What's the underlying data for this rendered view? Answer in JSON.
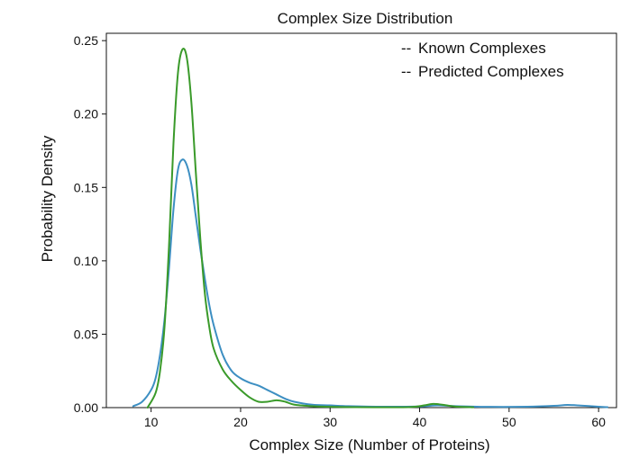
{
  "chart_data": {
    "type": "line",
    "title": "Complex Size Distribution",
    "xlabel": "Complex Size (Number of Proteins)",
    "ylabel": "Probability Density",
    "xlim": [
      5,
      62
    ],
    "ylim": [
      0,
      0.255
    ],
    "xticks": [
      10,
      20,
      30,
      40,
      50,
      60
    ],
    "yticks": [
      0.0,
      0.05,
      0.1,
      0.15,
      0.2,
      0.25
    ],
    "ytick_labels": [
      "0.00",
      "0.05",
      "0.10",
      "0.15",
      "0.20",
      "0.25"
    ],
    "grid": false,
    "legend_position": "top-right",
    "series": [
      {
        "name": "Known Complexes",
        "legend_symbol": "--",
        "color": "#3a9a2a",
        "legend_color": "#2a9d1e",
        "points": [
          [
            9.6,
            0.0
          ],
          [
            10.5,
            0.01
          ],
          [
            11.0,
            0.025
          ],
          [
            11.5,
            0.055
          ],
          [
            12.0,
            0.11
          ],
          [
            12.5,
            0.18
          ],
          [
            13.0,
            0.228
          ],
          [
            13.5,
            0.244
          ],
          [
            14.0,
            0.238
          ],
          [
            14.5,
            0.208
          ],
          [
            15.0,
            0.16
          ],
          [
            15.5,
            0.115
          ],
          [
            16.0,
            0.078
          ],
          [
            16.5,
            0.055
          ],
          [
            17.0,
            0.04
          ],
          [
            18.0,
            0.026
          ],
          [
            19.0,
            0.018
          ],
          [
            20.0,
            0.012
          ],
          [
            21.0,
            0.007
          ],
          [
            22.0,
            0.004
          ],
          [
            23.0,
            0.004
          ],
          [
            24.0,
            0.005
          ],
          [
            25.0,
            0.004
          ],
          [
            26.0,
            0.002
          ],
          [
            28.0,
            0.001
          ],
          [
            30.0,
            0.0005
          ],
          [
            35.0,
            0.0002
          ],
          [
            39.0,
            0.0004
          ],
          [
            40.5,
            0.0015
          ],
          [
            41.5,
            0.0025
          ],
          [
            42.5,
            0.002
          ],
          [
            44.0,
            0.0007
          ],
          [
            46.0,
            0.0002
          ]
        ]
      },
      {
        "name": "Predicted Complexes",
        "legend_symbol": "--",
        "color": "#3d8fc2",
        "legend_color": "#2233cc",
        "points": [
          [
            8.0,
            0.001
          ],
          [
            9.0,
            0.004
          ],
          [
            10.0,
            0.012
          ],
          [
            10.5,
            0.02
          ],
          [
            11.0,
            0.036
          ],
          [
            11.5,
            0.06
          ],
          [
            12.0,
            0.095
          ],
          [
            12.5,
            0.135
          ],
          [
            13.0,
            0.162
          ],
          [
            13.5,
            0.169
          ],
          [
            14.0,
            0.165
          ],
          [
            14.5,
            0.152
          ],
          [
            15.0,
            0.13
          ],
          [
            15.5,
            0.108
          ],
          [
            16.0,
            0.088
          ],
          [
            16.5,
            0.07
          ],
          [
            17.0,
            0.056
          ],
          [
            18.0,
            0.036
          ],
          [
            19.0,
            0.025
          ],
          [
            20.0,
            0.02
          ],
          [
            21.0,
            0.017
          ],
          [
            22.0,
            0.015
          ],
          [
            23.0,
            0.012
          ],
          [
            24.0,
            0.009
          ],
          [
            25.0,
            0.006
          ],
          [
            26.0,
            0.004
          ],
          [
            28.0,
            0.002
          ],
          [
            30.0,
            0.0015
          ],
          [
            32.0,
            0.001
          ],
          [
            36.0,
            0.0006
          ],
          [
            40.0,
            0.0008
          ],
          [
            42.0,
            0.0015
          ],
          [
            44.0,
            0.001
          ],
          [
            48.0,
            0.0005
          ],
          [
            52.0,
            0.0006
          ],
          [
            55.0,
            0.0012
          ],
          [
            56.5,
            0.0018
          ],
          [
            58.0,
            0.0014
          ],
          [
            60.0,
            0.0006
          ],
          [
            61.0,
            0.0003
          ]
        ]
      }
    ]
  }
}
